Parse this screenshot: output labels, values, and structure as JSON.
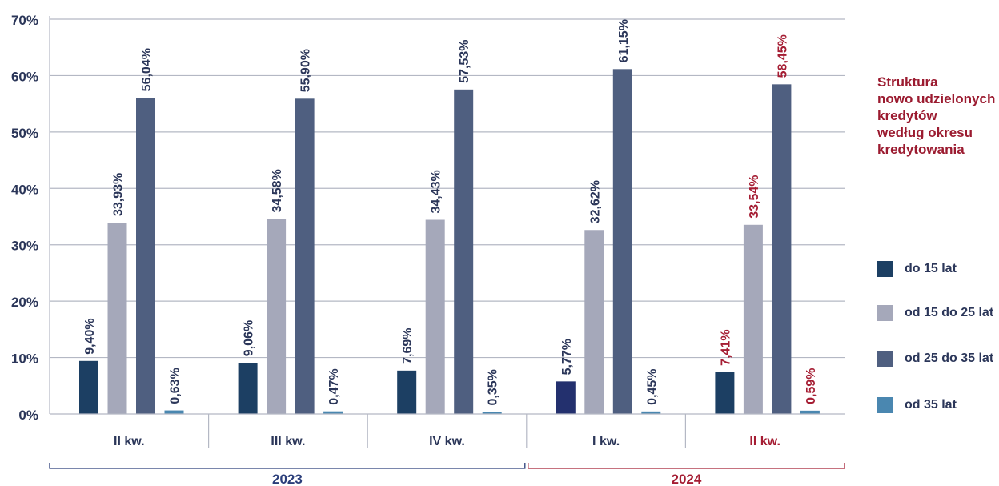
{
  "chart_data": {
    "type": "bar",
    "categories": [
      "II kw.",
      "III kw.",
      "IV kw.",
      "I kw.",
      "II kw."
    ],
    "years": [
      {
        "label": "2023",
        "span": [
          0,
          2
        ],
        "color": "#2b3e7a"
      },
      {
        "label": "2024",
        "span": [
          3,
          4
        ],
        "color": "#a51d33"
      }
    ],
    "series": [
      {
        "name": "do 15 lat",
        "color": "#1c3f63",
        "values": [
          9.4,
          9.06,
          7.69,
          5.77,
          7.41
        ],
        "labels": [
          "9,40%",
          "9,06%",
          "7,69%",
          "5,77%",
          "7,41%"
        ]
      },
      {
        "name": "od 15 do 25 lat",
        "color": "#a5a8ba",
        "values": [
          33.93,
          34.58,
          34.43,
          32.62,
          33.54
        ],
        "labels": [
          "33,93%",
          "34,58%",
          "34,43%",
          "32,62%",
          "33,54%"
        ]
      },
      {
        "name": "od 25 do 35 lat",
        "color": "#4f5f80",
        "values": [
          56.04,
          55.9,
          57.53,
          61.15,
          58.45
        ],
        "labels": [
          "56,04%",
          "55,90%",
          "57,53%",
          "61,15%",
          "58,45%"
        ]
      },
      {
        "name": "od 35 lat",
        "color": "#4a87b0",
        "values": [
          0.63,
          0.47,
          0.35,
          0.45,
          0.59
        ],
        "labels": [
          "0,63%",
          "0,47%",
          "0,35%",
          "0,45%",
          "0,59%"
        ]
      }
    ],
    "highlight_bar": {
      "series": 0,
      "category": 3,
      "color": "#23306e"
    },
    "label_colors": {
      "default": "#2b3659",
      "last_quarter": "#a51d33"
    },
    "ylim": [
      0,
      70
    ],
    "yticks": [
      0,
      10,
      20,
      30,
      40,
      50,
      60,
      70
    ],
    "ytick_labels": [
      "0%",
      "10%",
      "20%",
      "30%",
      "40%",
      "50%",
      "60%",
      "70%"
    ],
    "grid": true,
    "legend_position": "right",
    "xlabel": "",
    "ylabel": ""
  },
  "side_title": [
    "Struktura",
    "nowo udzielonych",
    "kredytów",
    "według okresu",
    "kredytowania"
  ],
  "colors": {
    "axis_text": "#2b3659",
    "grid": "#b4b8c4",
    "title": "#9b1b30"
  }
}
